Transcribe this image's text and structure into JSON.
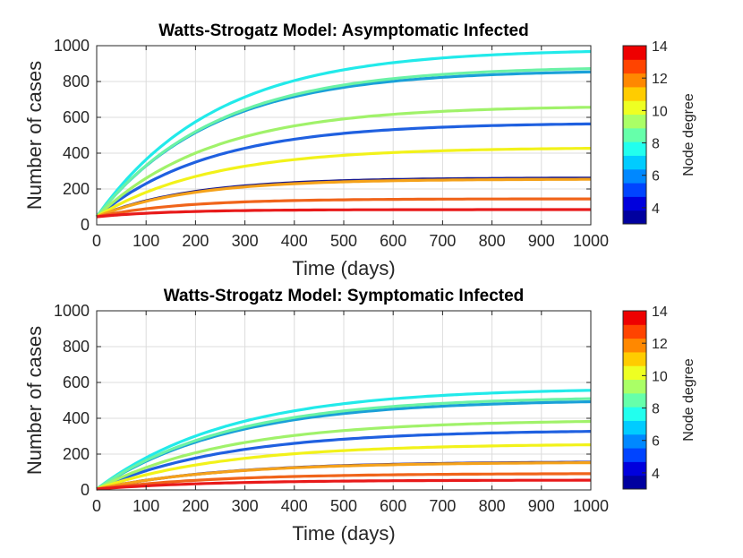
{
  "chart_data": [
    {
      "type": "line",
      "title": "Watts-Strogatz Model: Asymptomatic Infected",
      "xlabel": "Time (days)",
      "ylabel": "Number of cases",
      "xlim": [
        0,
        1000
      ],
      "ylim": [
        0,
        1000
      ],
      "xticks": [
        "0",
        "100",
        "200",
        "300",
        "400",
        "500",
        "600",
        "700",
        "800",
        "900",
        "1000"
      ],
      "yticks": [
        "0",
        "200",
        "400",
        "600",
        "800",
        "1000"
      ],
      "grid": true,
      "colorbar": {
        "label": "Node degree",
        "ticks": [
          "4",
          "6",
          "8",
          "10",
          "12",
          "14"
        ],
        "range": [
          3,
          14
        ]
      },
      "series": [
        {
          "name": "degree 3",
          "degree": 3,
          "start": 45,
          "final": 262,
          "tau": 190,
          "color": "#1a1a8c"
        },
        {
          "name": "degree 4",
          "degree": 4,
          "start": 45,
          "final": 570,
          "tau": 230,
          "color": "#1f60e0"
        },
        {
          "name": "degree 7",
          "degree": 7,
          "start": 45,
          "final": 865,
          "tau": 235,
          "color": "#1aa0d8"
        },
        {
          "name": "degree 8",
          "degree": 8,
          "start": 45,
          "final": 982,
          "tau": 240,
          "color": "#22eaea"
        },
        {
          "name": "degree 9",
          "degree": 9,
          "start": 45,
          "final": 885,
          "tau": 240,
          "color": "#6af2a6"
        },
        {
          "name": "degree 10",
          "degree": 10,
          "start": 45,
          "final": 665,
          "tau": 235,
          "color": "#a0f26a"
        },
        {
          "name": "degree 11",
          "degree": 11,
          "start": 45,
          "final": 432,
          "tau": 230,
          "color": "#f2f21a"
        },
        {
          "name": "degree 12",
          "degree": 12,
          "start": 45,
          "final": 255,
          "tau": 190,
          "color": "#f5a21a"
        },
        {
          "name": "degree 13",
          "degree": 13,
          "start": 45,
          "final": 145,
          "tau": 170,
          "color": "#f0641a"
        },
        {
          "name": "degree 14",
          "degree": 14,
          "start": 45,
          "final": 85,
          "tau": 150,
          "color": "#e81a1a"
        }
      ]
    },
    {
      "type": "line",
      "title": "Watts-Strogatz Model: Symptomatic Infected",
      "xlabel": "Time (days)",
      "ylabel": "Number of cases",
      "xlim": [
        0,
        1000
      ],
      "ylim": [
        0,
        1000
      ],
      "xticks": [
        "0",
        "100",
        "200",
        "300",
        "400",
        "500",
        "600",
        "700",
        "800",
        "900",
        "1000"
      ],
      "yticks": [
        "0",
        "200",
        "400",
        "600",
        "800",
        "1000"
      ],
      "grid": true,
      "colorbar": {
        "label": "Node degree",
        "ticks": [
          "4",
          "6",
          "8",
          "10",
          "12",
          "14"
        ],
        "range": [
          3,
          14
        ]
      },
      "series": [
        {
          "name": "degree 3",
          "degree": 3,
          "start": 5,
          "final": 158,
          "tau": 260,
          "color": "#1a1a8c"
        },
        {
          "name": "degree 4",
          "degree": 4,
          "start": 5,
          "final": 335,
          "tau": 270,
          "color": "#1f60e0"
        },
        {
          "name": "degree 7",
          "degree": 7,
          "start": 5,
          "final": 505,
          "tau": 270,
          "color": "#1aa0d8"
        },
        {
          "name": "degree 8",
          "degree": 8,
          "start": 5,
          "final": 570,
          "tau": 270,
          "color": "#22eaea"
        },
        {
          "name": "degree 9",
          "degree": 9,
          "start": 5,
          "final": 522,
          "tau": 270,
          "color": "#6af2a6"
        },
        {
          "name": "degree 10",
          "degree": 10,
          "start": 5,
          "final": 392,
          "tau": 270,
          "color": "#a0f26a"
        },
        {
          "name": "degree 11",
          "degree": 11,
          "start": 5,
          "final": 258,
          "tau": 265,
          "color": "#f2f21a"
        },
        {
          "name": "degree 12",
          "degree": 12,
          "start": 5,
          "final": 155,
          "tau": 255,
          "color": "#f5a21a"
        },
        {
          "name": "degree 13",
          "degree": 13,
          "start": 5,
          "final": 92,
          "tau": 245,
          "color": "#f0641a"
        },
        {
          "name": "degree 14",
          "degree": 14,
          "start": 5,
          "final": 55,
          "tau": 230,
          "color": "#e81a1a"
        }
      ]
    }
  ]
}
